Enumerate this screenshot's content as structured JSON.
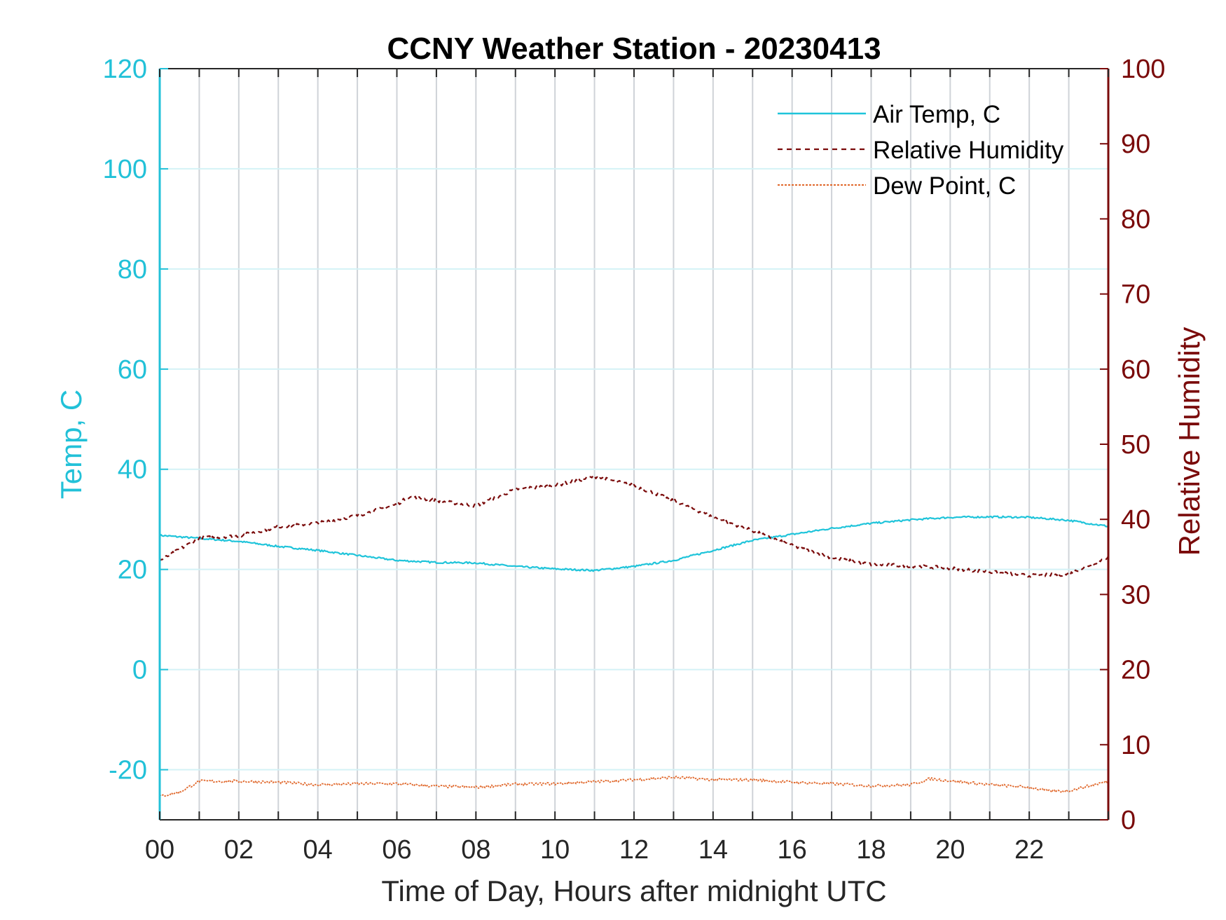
{
  "chart_data": {
    "type": "line",
    "title": "CCNY Weather Station - 20230413",
    "xlabel": "Time of Day, Hours after midnight UTC",
    "ylabel_left": "Temp, C",
    "ylabel_right": "Relative Humidity",
    "xlim": [
      0,
      24
    ],
    "ylim_left": [
      -30,
      120
    ],
    "ylim_right": [
      0,
      100
    ],
    "x_ticks": [
      0,
      2,
      4,
      6,
      8,
      10,
      12,
      14,
      16,
      18,
      20,
      22
    ],
    "x_tick_labels": [
      "00",
      "02",
      "04",
      "06",
      "08",
      "10",
      "12",
      "14",
      "16",
      "18",
      "20",
      "22"
    ],
    "y_left_ticks": [
      -20,
      0,
      20,
      40,
      60,
      80,
      100,
      120
    ],
    "y_right_ticks": [
      0,
      10,
      20,
      30,
      40,
      50,
      60,
      70,
      80,
      90,
      100
    ],
    "grid": "on",
    "legend_position": "top-right",
    "colors": {
      "air_temp": "#1fc4da",
      "humidity": "#7a0a0a",
      "dew_point": "#e0672a",
      "left_axis": "#22c1d8",
      "right_axis": "#7a0a0a",
      "grid_vertical": "#cfd3d8",
      "grid_horizontal": "#d4f2f6"
    },
    "series": [
      {
        "name": "Air Temp, C",
        "axis": "left",
        "style": "solid",
        "x": [
          0,
          1,
          2,
          3,
          4,
          5,
          6,
          7,
          8,
          9,
          10,
          11,
          12,
          13,
          14,
          15,
          16,
          17,
          18,
          19,
          20,
          21,
          22,
          23,
          24
        ],
        "y": [
          26.8,
          26.2,
          25.6,
          24.6,
          23.8,
          22.8,
          21.8,
          21.4,
          21.3,
          20.6,
          20.1,
          19.8,
          20.6,
          21.8,
          23.8,
          25.8,
          27.0,
          28.2,
          29.2,
          29.9,
          30.4,
          30.5,
          30.4,
          29.8,
          28.6
        ]
      },
      {
        "name": "Relative Humidity",
        "axis": "right",
        "style": "dashed",
        "x": [
          0,
          1,
          2,
          3,
          4,
          5,
          6,
          6.3,
          7,
          8,
          9,
          10,
          11,
          12,
          13,
          14,
          15,
          16,
          17,
          18,
          19,
          20,
          21,
          22,
          23,
          24
        ],
        "y": [
          34.5,
          37.5,
          37.8,
          39.0,
          39.5,
          40.5,
          42.0,
          43.0,
          42.5,
          41.8,
          44.0,
          44.5,
          45.7,
          44.5,
          42.5,
          40.3,
          38.5,
          36.5,
          34.9,
          34.0,
          33.8,
          33.5,
          33.0,
          32.5,
          32.7,
          35.0
        ]
      },
      {
        "name": "Dew Point, C",
        "axis": "left",
        "style": "dotted",
        "x": [
          0,
          0.5,
          1,
          2,
          3,
          4,
          5,
          6,
          7,
          8,
          9,
          10,
          11,
          12,
          13,
          14,
          15,
          16,
          17,
          18,
          19,
          19.5,
          20,
          21,
          22,
          22.5,
          23,
          24
        ],
        "y": [
          -25.3,
          -24.5,
          -22.3,
          -22.3,
          -22.5,
          -23.0,
          -22.8,
          -22.8,
          -23.3,
          -23.5,
          -22.9,
          -22.8,
          -22.4,
          -22.0,
          -21.5,
          -22.0,
          -22.0,
          -22.5,
          -22.8,
          -23.2,
          -23.0,
          -21.8,
          -22.2,
          -23.0,
          -23.5,
          -24.3,
          -24.2,
          -22.3
        ]
      }
    ]
  }
}
